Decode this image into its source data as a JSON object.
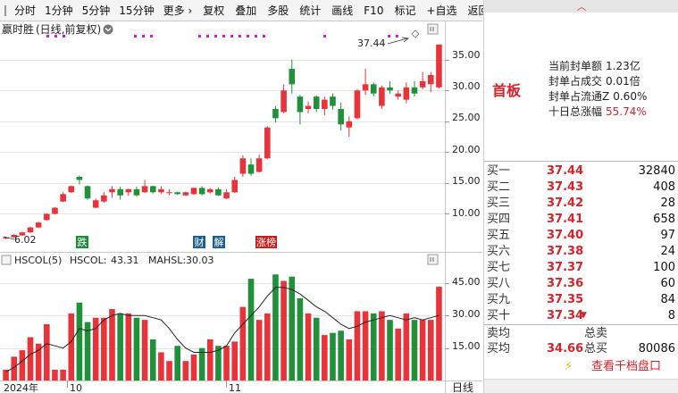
{
  "toolbar": {
    "items": [
      "分时",
      "1分钟",
      "5分钟",
      "15分钟",
      "更多 ›",
      "复权",
      "叠加",
      "多股",
      "统计",
      "画线",
      "F10",
      "标记",
      "+自选",
      "返回"
    ]
  },
  "chart": {
    "title": "赢时胜",
    "mode": "(日线,前复权)",
    "settings_icon": "chevron-down-circle-icon",
    "price_axis": [
      "35.00",
      "30.00",
      "25.00",
      "20.00",
      "15.00",
      "10.00"
    ],
    "high_label": "37.44",
    "low_label": "6.02",
    "markers": [
      {
        "label": "跌",
        "color": "#1f8a3b"
      },
      {
        "label": "财",
        "color": "#1e5e8c"
      },
      {
        "label": "解",
        "color": "#1e5e8c"
      },
      {
        "label": "涨榜",
        "color": "#c02020"
      }
    ],
    "indicator": {
      "name": "HSCOL(5)",
      "hscol_label": "HSCOL:",
      "hscol_value": "43.31",
      "mahsl_label": "MAHSL:",
      "mahsl_value": "30.03"
    },
    "volume_axis": [
      "45.00",
      "30.00",
      "15.00"
    ],
    "date_axis": [
      "2024年",
      "10",
      "11"
    ],
    "period_tab": "日线",
    "colors": {
      "up": "#e8333a",
      "down": "#21903a",
      "line": "#222222",
      "grid": "#e4e4e4",
      "marker_dot": "#d020d0"
    }
  },
  "chart_data": {
    "type": "candlestick",
    "ylim": [
      5,
      38
    ],
    "candles": [
      {
        "o": 6.0,
        "c": 6.2,
        "h": 6.3,
        "l": 5.9,
        "v": 5
      },
      {
        "o": 6.2,
        "c": 6.6,
        "h": 6.7,
        "l": 6.1,
        "v": 11
      },
      {
        "o": 6.5,
        "c": 7.0,
        "h": 7.1,
        "l": 6.4,
        "v": 14
      },
      {
        "o": 7.0,
        "c": 7.8,
        "h": 7.9,
        "l": 6.9,
        "v": 20
      },
      {
        "o": 7.8,
        "c": 8.6,
        "h": 8.7,
        "l": 7.7,
        "v": 17
      },
      {
        "o": 9.0,
        "c": 10.0,
        "h": 10.1,
        "l": 8.9,
        "v": 26
      },
      {
        "o": 10.0,
        "c": 11.0,
        "h": 11.1,
        "l": 9.9,
        "v": 5
      },
      {
        "o": 12.0,
        "c": 13.2,
        "h": 13.5,
        "l": 11.9,
        "v": 5
      },
      {
        "o": 13.5,
        "c": 14.5,
        "h": 14.6,
        "l": 13.4,
        "v": 31
      },
      {
        "o": 16.0,
        "c": 15.5,
        "h": 16.2,
        "l": 14.8,
        "v": 36
      },
      {
        "o": 14.5,
        "c": 12.5,
        "h": 14.6,
        "l": 12.3,
        "v": 27
      },
      {
        "o": 11.0,
        "c": 12.2,
        "h": 12.5,
        "l": 10.9,
        "v": 29
      },
      {
        "o": 12.0,
        "c": 13.0,
        "h": 13.5,
        "l": 11.8,
        "v": 29
      },
      {
        "o": 13.5,
        "c": 14.0,
        "h": 14.5,
        "l": 12.6,
        "v": 33
      },
      {
        "o": 14.0,
        "c": 13.0,
        "h": 14.4,
        "l": 12.3,
        "v": 31
      },
      {
        "o": 13.5,
        "c": 14.0,
        "h": 14.1,
        "l": 12.9,
        "v": 31
      },
      {
        "o": 14.0,
        "c": 13.0,
        "h": 14.4,
        "l": 12.8,
        "v": 29
      },
      {
        "o": 13.5,
        "c": 14.5,
        "h": 15.5,
        "l": 13.4,
        "v": 28
      },
      {
        "o": 14.5,
        "c": 13.5,
        "h": 14.6,
        "l": 13.3,
        "v": 19
      },
      {
        "o": 13.5,
        "c": 14.0,
        "h": 14.5,
        "l": 13.2,
        "v": 13
      },
      {
        "o": 13.5,
        "c": 13.5,
        "h": 14.0,
        "l": 13.0,
        "v": 9
      },
      {
        "o": 13.5,
        "c": 13.2,
        "h": 13.6,
        "l": 13.1,
        "v": 16
      },
      {
        "o": 13.0,
        "c": 13.5,
        "h": 13.6,
        "l": 12.9,
        "v": 9
      },
      {
        "o": 13.2,
        "c": 14.2,
        "h": 14.3,
        "l": 13.1,
        "v": 12
      },
      {
        "o": 14.2,
        "c": 13.2,
        "h": 14.5,
        "l": 13.0,
        "v": 15
      },
      {
        "o": 13.5,
        "c": 14.0,
        "h": 14.2,
        "l": 13.3,
        "v": 19
      },
      {
        "o": 14.0,
        "c": 13.0,
        "h": 14.3,
        "l": 12.9,
        "v": 16
      },
      {
        "o": 12.5,
        "c": 13.5,
        "h": 14.0,
        "l": 12.4,
        "v": 16
      },
      {
        "o": 13.5,
        "c": 15.5,
        "h": 16.0,
        "l": 13.4,
        "v": 18
      },
      {
        "o": 16.5,
        "c": 19.0,
        "h": 19.5,
        "l": 16.0,
        "v": 34
      },
      {
        "o": 18.0,
        "c": 16.5,
        "h": 19.0,
        "l": 16.2,
        "v": 47
      },
      {
        "o": 16.8,
        "c": 19.0,
        "h": 19.6,
        "l": 16.7,
        "v": 28
      },
      {
        "o": 19.0,
        "c": 24.0,
        "h": 24.2,
        "l": 18.9,
        "v": 31
      },
      {
        "o": 27.0,
        "c": 25.5,
        "h": 27.5,
        "l": 24.8,
        "v": 49
      },
      {
        "o": 26.5,
        "c": 30.0,
        "h": 31.0,
        "l": 26.3,
        "v": 46
      },
      {
        "o": 33.5,
        "c": 31.0,
        "h": 35.0,
        "l": 29.5,
        "v": 48
      },
      {
        "o": 29.0,
        "c": 26.5,
        "h": 29.3,
        "l": 24.5,
        "v": 38
      },
      {
        "o": 27.0,
        "c": 27.5,
        "h": 28.2,
        "l": 26.3,
        "v": 31
      },
      {
        "o": 29.0,
        "c": 27.0,
        "h": 29.2,
        "l": 26.5,
        "v": 29
      },
      {
        "o": 27.0,
        "c": 28.5,
        "h": 29.0,
        "l": 26.0,
        "v": 21
      },
      {
        "o": 29.0,
        "c": 27.5,
        "h": 29.5,
        "l": 26.9,
        "v": 22
      },
      {
        "o": 27.0,
        "c": 24.5,
        "h": 28.0,
        "l": 23.5,
        "v": 23
      },
      {
        "o": 24.0,
        "c": 25.0,
        "h": 25.8,
        "l": 22.5,
        "v": 19
      },
      {
        "o": 25.5,
        "c": 30.0,
        "h": 30.2,
        "l": 25.3,
        "v": 32
      },
      {
        "o": 30.0,
        "c": 31.0,
        "h": 33.5,
        "l": 29.3,
        "v": 32
      },
      {
        "o": 31.0,
        "c": 29.5,
        "h": 31.3,
        "l": 29.0,
        "v": 31
      },
      {
        "o": 27.5,
        "c": 30.5,
        "h": 30.8,
        "l": 27.0,
        "v": 32
      },
      {
        "o": 30.5,
        "c": 30.0,
        "h": 31.5,
        "l": 29.5,
        "v": 28
      },
      {
        "o": 29.0,
        "c": 29.5,
        "h": 30.0,
        "l": 28.5,
        "v": 24
      },
      {
        "o": 28.5,
        "c": 30.5,
        "h": 31.3,
        "l": 27.9,
        "v": 31
      },
      {
        "o": 30.5,
        "c": 29.5,
        "h": 31.5,
        "l": 29.0,
        "v": 28
      },
      {
        "o": 30.5,
        "c": 31.5,
        "h": 33.0,
        "l": 30.2,
        "v": 28
      },
      {
        "o": 31.0,
        "c": 32.5,
        "h": 33.0,
        "l": 29.7,
        "v": 28
      },
      {
        "o": 30.5,
        "c": 37.44,
        "h": 37.44,
        "l": 30.3,
        "v": 43.31
      }
    ],
    "mahsl": [
      4,
      6,
      9,
      12,
      14,
      17,
      16,
      15,
      18,
      24,
      23,
      24,
      28,
      30,
      31,
      30,
      30,
      30,
      29,
      28,
      24,
      19,
      15,
      13,
      13,
      13,
      14,
      16,
      22,
      26,
      30,
      34,
      39,
      43,
      43,
      42,
      40,
      37,
      34,
      32,
      29,
      26,
      24,
      25,
      27,
      28,
      29,
      30,
      29,
      28,
      29,
      28,
      29,
      30.03
    ],
    "vlim": [
      0,
      52
    ]
  },
  "right_panel": {
    "collapse_icon": "chevron-up-icon",
    "board": "首板",
    "info": [
      {
        "label": "当前封单额",
        "value": "1.23亿",
        "red": false
      },
      {
        "label": "封单占成交",
        "value": "0.01倍",
        "red": false
      },
      {
        "label": "封单占流通Z",
        "value": "0.60%",
        "red": false
      },
      {
        "label": "十日总涨幅",
        "value": "55.74%",
        "red": true
      }
    ],
    "order_book": [
      {
        "label": "买一",
        "price": "37.44",
        "volume": "32840"
      },
      {
        "label": "买二",
        "price": "37.43",
        "volume": "408"
      },
      {
        "label": "买三",
        "price": "37.42",
        "volume": "28"
      },
      {
        "label": "买四",
        "price": "37.41",
        "volume": "658"
      },
      {
        "label": "买五",
        "price": "37.40",
        "volume": "97"
      },
      {
        "label": "买六",
        "price": "37.38",
        "volume": "24"
      },
      {
        "label": "买七",
        "price": "37.37",
        "volume": "100"
      },
      {
        "label": "买八",
        "price": "37.36",
        "volume": "60"
      },
      {
        "label": "买九",
        "price": "37.35",
        "volume": "84"
      },
      {
        "label": "买十",
        "price": "37.34",
        "volume": "8"
      }
    ],
    "down_arrow": "▼",
    "summary": {
      "sell_avg_label": "卖均",
      "sell_avg_value": "",
      "total_sell_label": "总卖",
      "total_sell_value": "",
      "buy_avg_label": "买均",
      "buy_avg_value": "34.66",
      "total_buy_label": "总买",
      "total_buy_value": "80086"
    },
    "qiandang": {
      "icon": "lightning-icon",
      "label": "查看千档盘口"
    }
  }
}
